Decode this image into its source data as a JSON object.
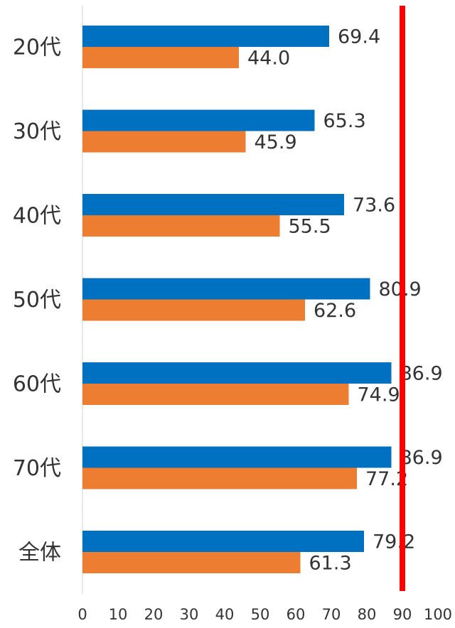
{
  "chart_data": {
    "type": "hbar",
    "categories": [
      "20代",
      "30代",
      "40代",
      "50代",
      "60代",
      "70代",
      "全体"
    ],
    "series": [
      {
        "color": "#0070c0",
        "values": [
          69.4,
          65.3,
          73.6,
          80.9,
          86.9,
          86.9,
          79.2
        ]
      },
      {
        "color": "#ed7d31",
        "values": [
          44.0,
          45.9,
          55.5,
          62.6,
          74.9,
          77.2,
          61.3
        ],
        "value_labels": [
          "44.0",
          "45.9",
          "55.5",
          "62.6",
          "74.9",
          "77.2",
          "61.3"
        ]
      }
    ],
    "xlim": [
      0,
      100
    ],
    "xticks": [
      0,
      10,
      20,
      30,
      40,
      50,
      60,
      70,
      80,
      90,
      100
    ],
    "reference_line": {
      "value": 90,
      "color": "#ff0000"
    }
  }
}
